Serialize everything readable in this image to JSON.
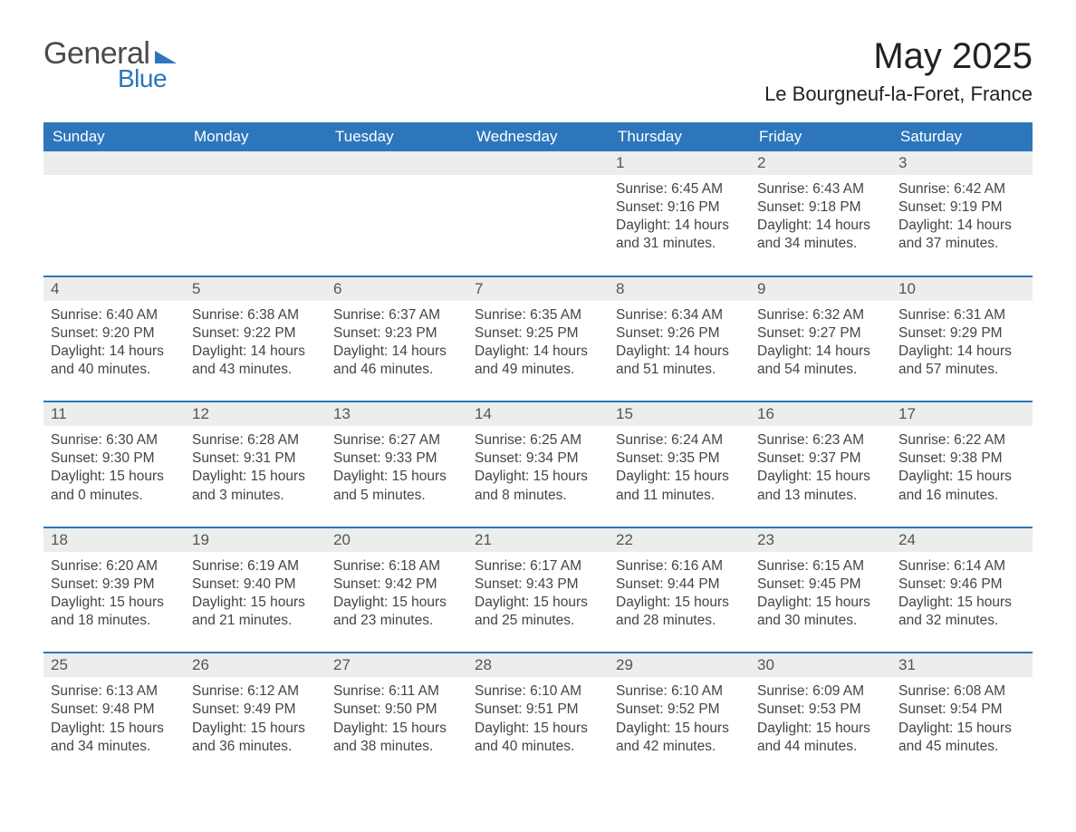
{
  "logo": {
    "text_general": "General",
    "text_blue": "Blue",
    "brand_color": "#2d76bb",
    "text_color": "#4a4a4a"
  },
  "title": "May 2025",
  "subtitle": "Le Bourgneuf-la-Foret, France",
  "colors": {
    "header_bg": "#2d76bb",
    "header_text": "#ffffff",
    "daynum_bg": "#eceded",
    "daynum_border": "#2d76bb",
    "body_text": "#444444",
    "page_bg": "#ffffff"
  },
  "fonts": {
    "title_size_pt": 30,
    "subtitle_size_pt": 16,
    "weekday_size_pt": 13,
    "daynum_size_pt": 13,
    "body_size_pt": 11.5,
    "family": "Arial"
  },
  "weekdays": [
    "Sunday",
    "Monday",
    "Tuesday",
    "Wednesday",
    "Thursday",
    "Friday",
    "Saturday"
  ],
  "weeks": [
    [
      {
        "empty": true
      },
      {
        "empty": true
      },
      {
        "empty": true
      },
      {
        "empty": true
      },
      {
        "day": "1",
        "sunrise": "Sunrise: 6:45 AM",
        "sunset": "Sunset: 9:16 PM",
        "daylight1": "Daylight: 14 hours",
        "daylight2": "and 31 minutes."
      },
      {
        "day": "2",
        "sunrise": "Sunrise: 6:43 AM",
        "sunset": "Sunset: 9:18 PM",
        "daylight1": "Daylight: 14 hours",
        "daylight2": "and 34 minutes."
      },
      {
        "day": "3",
        "sunrise": "Sunrise: 6:42 AM",
        "sunset": "Sunset: 9:19 PM",
        "daylight1": "Daylight: 14 hours",
        "daylight2": "and 37 minutes."
      }
    ],
    [
      {
        "day": "4",
        "sunrise": "Sunrise: 6:40 AM",
        "sunset": "Sunset: 9:20 PM",
        "daylight1": "Daylight: 14 hours",
        "daylight2": "and 40 minutes."
      },
      {
        "day": "5",
        "sunrise": "Sunrise: 6:38 AM",
        "sunset": "Sunset: 9:22 PM",
        "daylight1": "Daylight: 14 hours",
        "daylight2": "and 43 minutes."
      },
      {
        "day": "6",
        "sunrise": "Sunrise: 6:37 AM",
        "sunset": "Sunset: 9:23 PM",
        "daylight1": "Daylight: 14 hours",
        "daylight2": "and 46 minutes."
      },
      {
        "day": "7",
        "sunrise": "Sunrise: 6:35 AM",
        "sunset": "Sunset: 9:25 PM",
        "daylight1": "Daylight: 14 hours",
        "daylight2": "and 49 minutes."
      },
      {
        "day": "8",
        "sunrise": "Sunrise: 6:34 AM",
        "sunset": "Sunset: 9:26 PM",
        "daylight1": "Daylight: 14 hours",
        "daylight2": "and 51 minutes."
      },
      {
        "day": "9",
        "sunrise": "Sunrise: 6:32 AM",
        "sunset": "Sunset: 9:27 PM",
        "daylight1": "Daylight: 14 hours",
        "daylight2": "and 54 minutes."
      },
      {
        "day": "10",
        "sunrise": "Sunrise: 6:31 AM",
        "sunset": "Sunset: 9:29 PM",
        "daylight1": "Daylight: 14 hours",
        "daylight2": "and 57 minutes."
      }
    ],
    [
      {
        "day": "11",
        "sunrise": "Sunrise: 6:30 AM",
        "sunset": "Sunset: 9:30 PM",
        "daylight1": "Daylight: 15 hours",
        "daylight2": "and 0 minutes."
      },
      {
        "day": "12",
        "sunrise": "Sunrise: 6:28 AM",
        "sunset": "Sunset: 9:31 PM",
        "daylight1": "Daylight: 15 hours",
        "daylight2": "and 3 minutes."
      },
      {
        "day": "13",
        "sunrise": "Sunrise: 6:27 AM",
        "sunset": "Sunset: 9:33 PM",
        "daylight1": "Daylight: 15 hours",
        "daylight2": "and 5 minutes."
      },
      {
        "day": "14",
        "sunrise": "Sunrise: 6:25 AM",
        "sunset": "Sunset: 9:34 PM",
        "daylight1": "Daylight: 15 hours",
        "daylight2": "and 8 minutes."
      },
      {
        "day": "15",
        "sunrise": "Sunrise: 6:24 AM",
        "sunset": "Sunset: 9:35 PM",
        "daylight1": "Daylight: 15 hours",
        "daylight2": "and 11 minutes."
      },
      {
        "day": "16",
        "sunrise": "Sunrise: 6:23 AM",
        "sunset": "Sunset: 9:37 PM",
        "daylight1": "Daylight: 15 hours",
        "daylight2": "and 13 minutes."
      },
      {
        "day": "17",
        "sunrise": "Sunrise: 6:22 AM",
        "sunset": "Sunset: 9:38 PM",
        "daylight1": "Daylight: 15 hours",
        "daylight2": "and 16 minutes."
      }
    ],
    [
      {
        "day": "18",
        "sunrise": "Sunrise: 6:20 AM",
        "sunset": "Sunset: 9:39 PM",
        "daylight1": "Daylight: 15 hours",
        "daylight2": "and 18 minutes."
      },
      {
        "day": "19",
        "sunrise": "Sunrise: 6:19 AM",
        "sunset": "Sunset: 9:40 PM",
        "daylight1": "Daylight: 15 hours",
        "daylight2": "and 21 minutes."
      },
      {
        "day": "20",
        "sunrise": "Sunrise: 6:18 AM",
        "sunset": "Sunset: 9:42 PM",
        "daylight1": "Daylight: 15 hours",
        "daylight2": "and 23 minutes."
      },
      {
        "day": "21",
        "sunrise": "Sunrise: 6:17 AM",
        "sunset": "Sunset: 9:43 PM",
        "daylight1": "Daylight: 15 hours",
        "daylight2": "and 25 minutes."
      },
      {
        "day": "22",
        "sunrise": "Sunrise: 6:16 AM",
        "sunset": "Sunset: 9:44 PM",
        "daylight1": "Daylight: 15 hours",
        "daylight2": "and 28 minutes."
      },
      {
        "day": "23",
        "sunrise": "Sunrise: 6:15 AM",
        "sunset": "Sunset: 9:45 PM",
        "daylight1": "Daylight: 15 hours",
        "daylight2": "and 30 minutes."
      },
      {
        "day": "24",
        "sunrise": "Sunrise: 6:14 AM",
        "sunset": "Sunset: 9:46 PM",
        "daylight1": "Daylight: 15 hours",
        "daylight2": "and 32 minutes."
      }
    ],
    [
      {
        "day": "25",
        "sunrise": "Sunrise: 6:13 AM",
        "sunset": "Sunset: 9:48 PM",
        "daylight1": "Daylight: 15 hours",
        "daylight2": "and 34 minutes."
      },
      {
        "day": "26",
        "sunrise": "Sunrise: 6:12 AM",
        "sunset": "Sunset: 9:49 PM",
        "daylight1": "Daylight: 15 hours",
        "daylight2": "and 36 minutes."
      },
      {
        "day": "27",
        "sunrise": "Sunrise: 6:11 AM",
        "sunset": "Sunset: 9:50 PM",
        "daylight1": "Daylight: 15 hours",
        "daylight2": "and 38 minutes."
      },
      {
        "day": "28",
        "sunrise": "Sunrise: 6:10 AM",
        "sunset": "Sunset: 9:51 PM",
        "daylight1": "Daylight: 15 hours",
        "daylight2": "and 40 minutes."
      },
      {
        "day": "29",
        "sunrise": "Sunrise: 6:10 AM",
        "sunset": "Sunset: 9:52 PM",
        "daylight1": "Daylight: 15 hours",
        "daylight2": "and 42 minutes."
      },
      {
        "day": "30",
        "sunrise": "Sunrise: 6:09 AM",
        "sunset": "Sunset: 9:53 PM",
        "daylight1": "Daylight: 15 hours",
        "daylight2": "and 44 minutes."
      },
      {
        "day": "31",
        "sunrise": "Sunrise: 6:08 AM",
        "sunset": "Sunset: 9:54 PM",
        "daylight1": "Daylight: 15 hours",
        "daylight2": "and 45 minutes."
      }
    ]
  ]
}
